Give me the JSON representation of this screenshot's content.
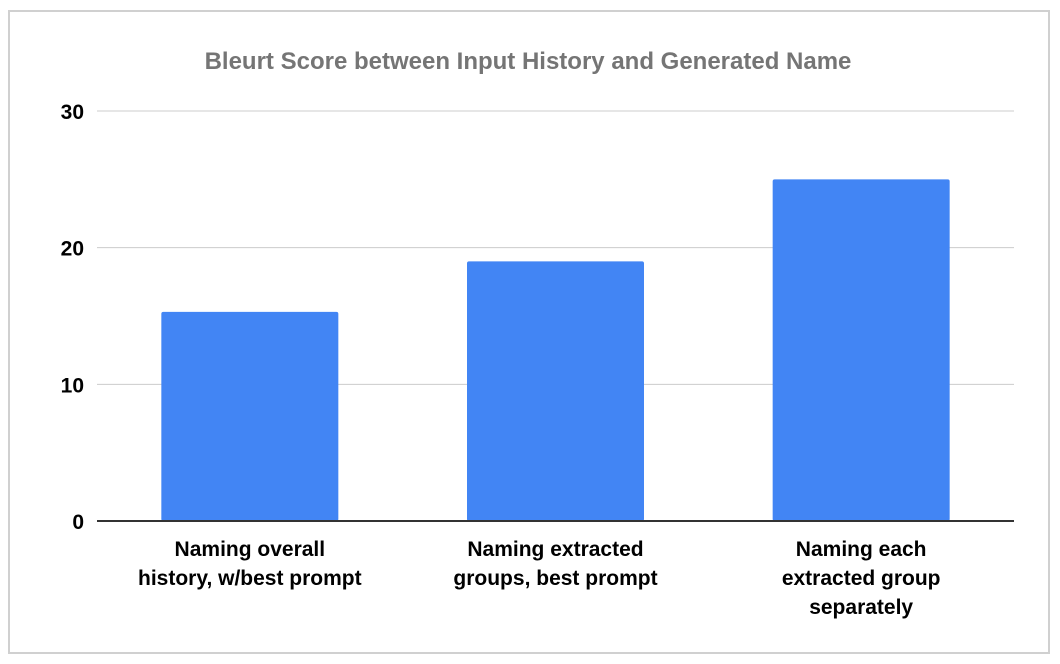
{
  "chart_data": {
    "type": "bar",
    "title": "Bleurt Score between Input History and Generated Name",
    "xlabel": "",
    "ylabel": "",
    "categories": [
      [
        "Naming overall",
        "history, w/best prompt"
      ],
      [
        "Naming extracted",
        "groups, best prompt"
      ],
      [
        "Naming each",
        "extracted group",
        "separately"
      ]
    ],
    "values": [
      15.3,
      19,
      25
    ],
    "ylim": [
      0,
      30
    ],
    "yticks": [
      0,
      10,
      20,
      30
    ],
    "grid": true,
    "legend": "none",
    "bar_color": "#4285f4"
  }
}
